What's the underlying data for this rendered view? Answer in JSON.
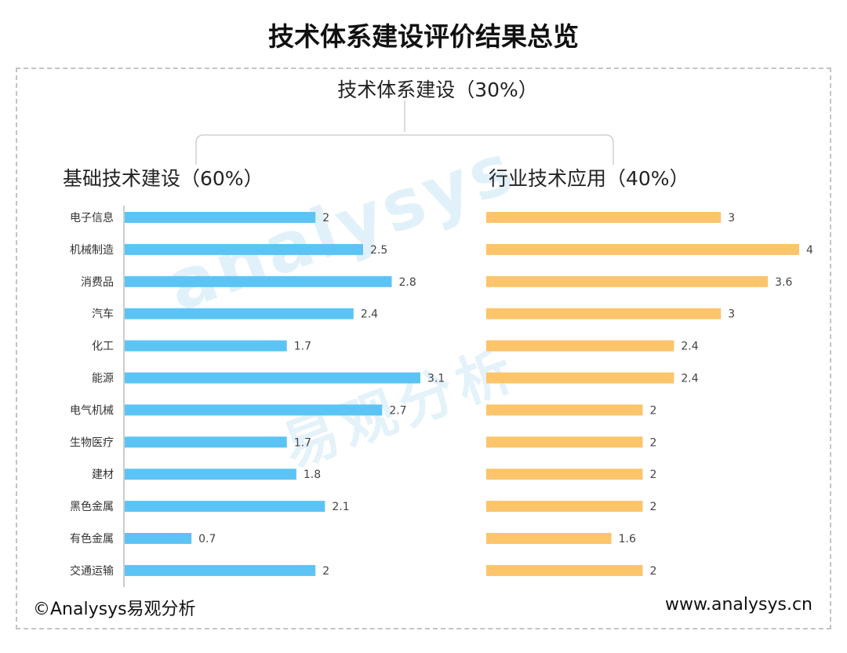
{
  "title": "技术体系建设评价结果总览",
  "root_label": "技术体系建设（30%）",
  "left_label": "基础技术建设（60%）",
  "right_label": "行业技术应用（40%）",
  "watermark": "analysys",
  "watermark_cn": "易观分析",
  "footer_left": "©Analysys易观分析",
  "footer_right": "www.analysys.cn",
  "colors": {
    "left_bar": "#5bc4f5",
    "right_bar": "#fcc46b"
  },
  "chart_data": [
    {
      "type": "bar",
      "orientation": "horizontal",
      "title": "基础技术建设（60%）",
      "categories": [
        "电子信息",
        "机械制造",
        "消费品",
        "汽车",
        "化工",
        "能源",
        "电气机械",
        "生物医疗",
        "建材",
        "黑色金属",
        "有色金属",
        "交通运输"
      ],
      "values": [
        2,
        2.5,
        2.8,
        2.4,
        1.7,
        3.1,
        2.7,
        1.7,
        1.8,
        2.1,
        0.7,
        2
      ],
      "value_labels": [
        "2",
        "2.5",
        "2.8",
        "2.4",
        "1.7",
        "3.1",
        "2.7",
        "1.7",
        "1.8",
        "2.1",
        "0.7",
        "2"
      ],
      "color": "#5bc4f5"
    },
    {
      "type": "bar",
      "orientation": "horizontal",
      "title": "行业技术应用（40%）",
      "categories": [
        "电子信息",
        "机械制造",
        "消费品",
        "汽车",
        "化工",
        "能源",
        "电气机械",
        "生物医疗",
        "建材",
        "黑色金属",
        "有色金属",
        "交通运输"
      ],
      "values": [
        3,
        4,
        3.6,
        3,
        2.4,
        2.4,
        2,
        2,
        2,
        2,
        1.6,
        2
      ],
      "value_labels": [
        "3",
        "4",
        "3.6",
        "3",
        "2.4",
        "2.4",
        "2",
        "2",
        "2",
        "2",
        "1.6",
        "2"
      ],
      "color": "#fcc46b"
    }
  ]
}
